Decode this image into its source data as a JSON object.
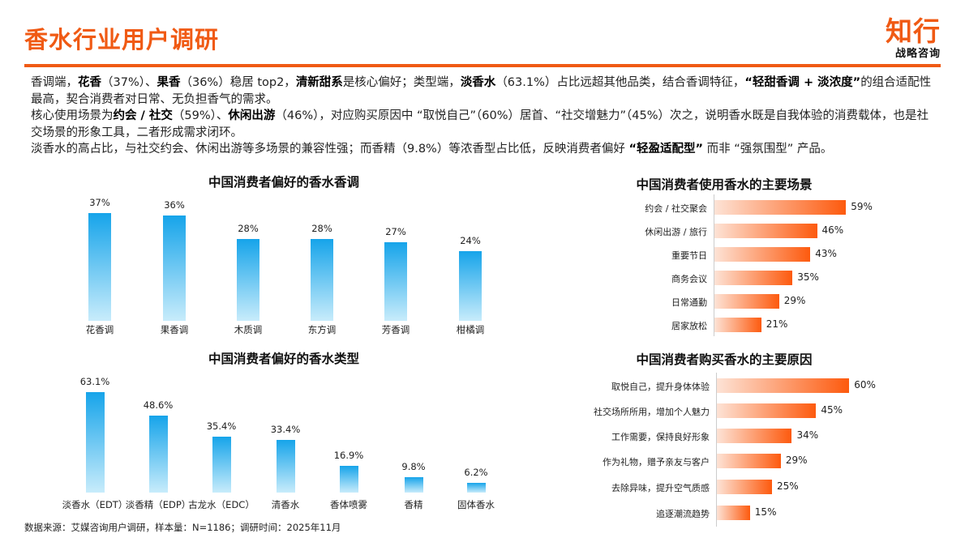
{
  "header": {
    "title": "香水行业用户调研",
    "logo_main": "知行",
    "logo_sub": "战略咨询"
  },
  "summary": [
    [
      {
        "t": "香调端，"
      },
      {
        "t": "花香",
        "b": 1
      },
      {
        "t": "（37%）、"
      },
      {
        "t": "果香",
        "b": 1
      },
      {
        "t": "（36%）稳居 top2，"
      },
      {
        "t": "清新甜系",
        "b": 1
      },
      {
        "t": "是核心偏好；类型端，"
      },
      {
        "t": "淡香水",
        "b": 1
      },
      {
        "t": "（63.1%）占比远超其他品类，结合香调特征，"
      },
      {
        "t": "“轻甜香调 + 淡浓度”",
        "b": 1
      },
      {
        "t": "的组合适配性最高，契合消费者对日常、无负担香气的需求。"
      }
    ],
    [
      {
        "t": "核心使用场景为"
      },
      {
        "t": "约会 / 社交",
        "b": 1
      },
      {
        "t": "（59%）、"
      },
      {
        "t": "休闲出游",
        "b": 1
      },
      {
        "t": "（46%），对应购买原因中 “取悦自己”（60%）居首、“社交增魅力”（45%）次之，说明香水既是自我体验的消费载体，也是社交场景的形象工具，二者形成需求闭环。"
      }
    ],
    [
      {
        "t": "淡香水的高占比，与社交约会、休闲出游等多场景的兼容性强；而香精（9.8%）等浓香型占比低，反映消费者偏好 "
      },
      {
        "t": "“轻盈适配型”",
        "b": 1
      },
      {
        "t": " 而非 “强氛围型” 产品。"
      }
    ]
  ],
  "chart_data": [
    {
      "type": "bar",
      "title": "中国消费者偏好的香水香调",
      "categories": [
        "花香调",
        "果香调",
        "木质调",
        "东方调",
        "芳香调",
        "柑橘调"
      ],
      "values": [
        37,
        36,
        28,
        28,
        27,
        24
      ],
      "labels": [
        "37%",
        "36%",
        "28%",
        "28%",
        "27%",
        "24%"
      ],
      "unit": "%"
    },
    {
      "type": "bar",
      "title": "中国消费者偏好的香水类型",
      "categories": [
        "淡香水（EDT）",
        "淡香精（EDP）",
        "古龙水（EDC）",
        "清香水",
        "香体喷雾",
        "香精",
        "固体香水"
      ],
      "values": [
        63.1,
        48.6,
        35.4,
        33.4,
        16.9,
        9.8,
        6.2
      ],
      "labels": [
        "63.1%",
        "48.6%",
        "35.4%",
        "33.4%",
        "16.9%",
        "9.8%",
        "6.2%"
      ],
      "unit": "%"
    },
    {
      "type": "bar",
      "orientation": "horizontal",
      "title": "中国消费者使用香水的主要场景",
      "categories": [
        "约会 / 社交聚会",
        "休闲出游 / 旅行",
        "重要节日",
        "商务会议",
        "日常通勤",
        "居家放松"
      ],
      "values": [
        59,
        46,
        43,
        35,
        29,
        21
      ],
      "labels": [
        "59%",
        "46%",
        "43%",
        "35%",
        "29%",
        "21%"
      ],
      "unit": "%"
    },
    {
      "type": "bar",
      "orientation": "horizontal",
      "title": "中国消费者购买香水的主要原因",
      "categories": [
        "取悦自己，提升身体体验",
        "社交场所所用，增加个人魅力",
        "工作需要，保持良好形象",
        "作为礼物，赠予亲友与客户",
        "去除异味，提升空气质感",
        "追逐潮流趋势"
      ],
      "values": [
        60,
        45,
        34,
        29,
        25,
        15
      ],
      "labels": [
        "60%",
        "45%",
        "34%",
        "29%",
        "25%",
        "15%"
      ],
      "unit": "%"
    }
  ],
  "footer": {
    "source": "数据来源：艾媒咨询用户调研，样本量：N=1186；调研时间：2025年11月"
  },
  "colors": {
    "accent": "#f05a14",
    "blue": "#16a4ea",
    "orange_bar": "#fd5a0e"
  }
}
